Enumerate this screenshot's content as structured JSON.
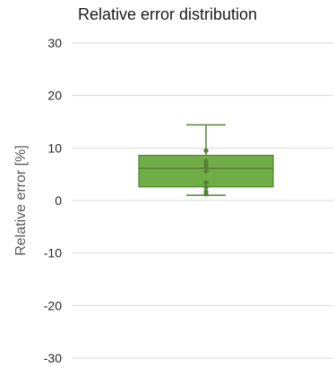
{
  "chart_data": {
    "type": "box",
    "title": "Relative error distribution",
    "xlabel": "",
    "ylabel": "Relative error [%]",
    "ylim": [
      -30,
      30
    ],
    "yticks": [
      30,
      20,
      10,
      0,
      -10,
      -20,
      -30
    ],
    "ytick_labels": [
      "30",
      "20",
      "10",
      "0",
      "-10",
      "-20",
      "-30"
    ],
    "grid": true,
    "colors": {
      "box_fill": "#70ad47",
      "box_stroke": "#548235",
      "point": "#548235",
      "grid": "#d9d9d9",
      "axis_text": "#595959"
    },
    "box": {
      "min": 1.0,
      "q1": 2.6,
      "median": 6.1,
      "q3": 8.6,
      "max": 14.4,
      "points": [
        9.5,
        7.5,
        6.8,
        6.3,
        5.6,
        3.4,
        2.5,
        1.7,
        1.2
      ]
    }
  }
}
